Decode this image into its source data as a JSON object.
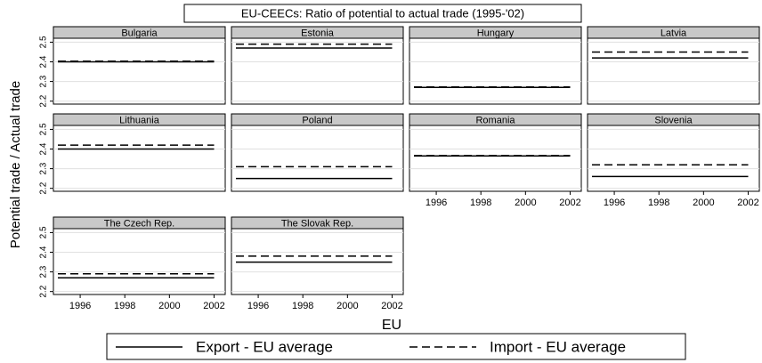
{
  "chart_data": {
    "type": "line",
    "title": "EU-CEECs: Ratio of potential to actual trade (1995-'02)",
    "x_label": "EU",
    "y_label": "Potential trade / Actual trade",
    "x": [
      1995,
      1996,
      1997,
      1998,
      1999,
      2000,
      2001,
      2002
    ],
    "xlim": [
      1994.8,
      2002.5
    ],
    "xticks": [
      1996,
      1998,
      2000,
      2002
    ],
    "ylim": [
      2.185,
      2.52
    ],
    "yticks": [
      2.2,
      2.3,
      2.4,
      2.5
    ],
    "grid": true,
    "series": [
      {
        "name": "Export - EU average",
        "color": "#000000",
        "dash": "solid"
      },
      {
        "name": "Import - EU average",
        "color": "#000000",
        "dash": "dashed"
      }
    ],
    "panels": [
      {
        "title": "Bulgaria",
        "values": [
          [
            2.4,
            2.4,
            2.4,
            2.4,
            2.4,
            2.4,
            2.4,
            2.4
          ],
          [
            2.403,
            2.403,
            2.403,
            2.403,
            2.403,
            2.403,
            2.403,
            2.403
          ]
        ]
      },
      {
        "title": "Estonia",
        "values": [
          [
            2.47,
            2.47,
            2.47,
            2.47,
            2.47,
            2.47,
            2.47,
            2.47
          ],
          [
            2.49,
            2.49,
            2.49,
            2.49,
            2.49,
            2.49,
            2.49,
            2.49
          ]
        ]
      },
      {
        "title": "Hungary",
        "values": [
          [
            2.27,
            2.27,
            2.27,
            2.27,
            2.27,
            2.27,
            2.27,
            2.27
          ],
          [
            2.272,
            2.272,
            2.272,
            2.272,
            2.272,
            2.272,
            2.272,
            2.272
          ]
        ]
      },
      {
        "title": "Latvia",
        "values": [
          [
            2.42,
            2.42,
            2.42,
            2.42,
            2.42,
            2.42,
            2.42,
            2.42
          ],
          [
            2.45,
            2.45,
            2.45,
            2.45,
            2.45,
            2.45,
            2.45,
            2.45
          ]
        ]
      },
      {
        "title": "Lithuania",
        "values": [
          [
            2.4,
            2.4,
            2.4,
            2.4,
            2.4,
            2.4,
            2.4,
            2.4
          ],
          [
            2.42,
            2.42,
            2.42,
            2.42,
            2.42,
            2.42,
            2.42,
            2.42
          ]
        ]
      },
      {
        "title": "Poland",
        "values": [
          [
            2.25,
            2.25,
            2.25,
            2.25,
            2.25,
            2.25,
            2.25,
            2.25
          ],
          [
            2.31,
            2.31,
            2.31,
            2.31,
            2.31,
            2.31,
            2.31,
            2.31
          ]
        ]
      },
      {
        "title": "Romania",
        "values": [
          [
            2.365,
            2.365,
            2.365,
            2.365,
            2.365,
            2.365,
            2.365,
            2.365
          ],
          [
            2.367,
            2.367,
            2.367,
            2.367,
            2.367,
            2.367,
            2.367,
            2.367
          ]
        ]
      },
      {
        "title": "Slovenia",
        "values": [
          [
            2.26,
            2.26,
            2.26,
            2.26,
            2.26,
            2.26,
            2.26,
            2.26
          ],
          [
            2.32,
            2.32,
            2.32,
            2.32,
            2.32,
            2.32,
            2.32,
            2.32
          ]
        ]
      },
      {
        "title": "The Czech Rep.",
        "values": [
          [
            2.27,
            2.27,
            2.27,
            2.27,
            2.27,
            2.27,
            2.27,
            2.27
          ],
          [
            2.29,
            2.29,
            2.29,
            2.29,
            2.29,
            2.29,
            2.29,
            2.29
          ]
        ]
      },
      {
        "title": "The Slovak Rep.",
        "values": [
          [
            2.35,
            2.35,
            2.35,
            2.35,
            2.35,
            2.35,
            2.35,
            2.35
          ],
          [
            2.38,
            2.38,
            2.38,
            2.38,
            2.38,
            2.38,
            2.38,
            2.38
          ]
        ]
      }
    ]
  }
}
